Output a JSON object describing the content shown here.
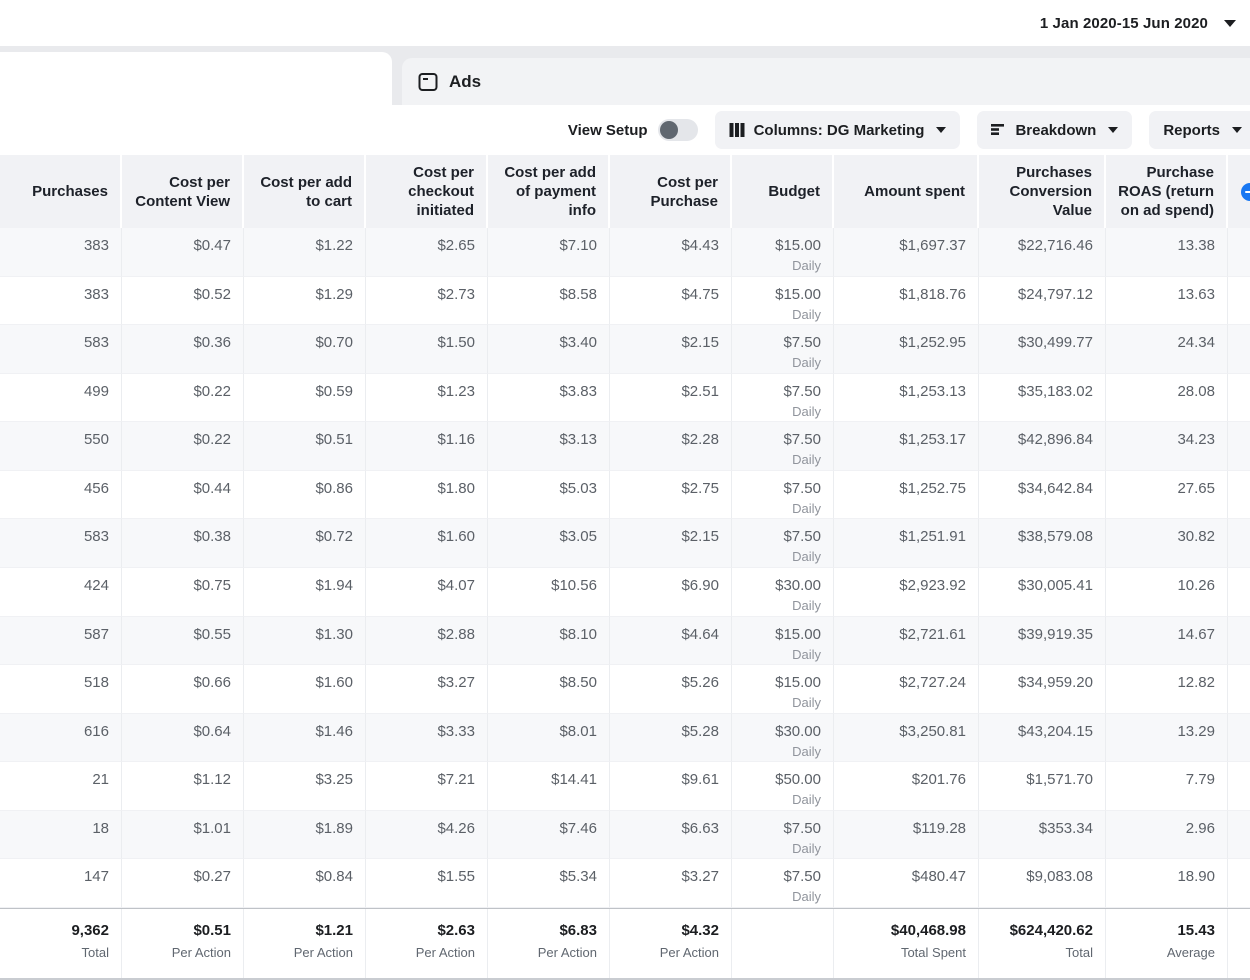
{
  "topbar": {
    "date_range": "1 Jan 2020-15 Jun 2020"
  },
  "tabs": {
    "ads_label": "Ads"
  },
  "toolbar": {
    "view_setup_label": "View Setup",
    "view_setup_state": "off",
    "columns_label": "Columns: DG Marketing",
    "breakdown_label": "Breakdown",
    "reports_label": "Reports"
  },
  "colors": {
    "accent_blue": "#1877f2"
  },
  "table": {
    "column_ids": [
      "purchases",
      "cost-per-content-view",
      "cost-per-add-to-cart",
      "cost-per-checkout-initiated",
      "cost-per-add-of-payment-info",
      "cost-per-purchase",
      "budget",
      "amount-spent",
      "purchases-conversion-value",
      "purchase-roas"
    ],
    "columns": [
      "Purchases",
      "Cost per Content View",
      "Cost per add to cart",
      "Cost per checkout initiated",
      "Cost per add of payment info",
      "Cost per Purchase",
      "Budget",
      "Amount spent",
      "Purchases Conversion Value",
      "Purchase ROAS (return on ad spend)"
    ],
    "rows": [
      [
        "383",
        "$0.47",
        "$1.22",
        "$2.65",
        "$7.10",
        "$4.43",
        "$15.00",
        "Daily",
        "$1,697.37",
        "$22,716.46",
        "13.38"
      ],
      [
        "383",
        "$0.52",
        "$1.29",
        "$2.73",
        "$8.58",
        "$4.75",
        "$15.00",
        "Daily",
        "$1,818.76",
        "$24,797.12",
        "13.63"
      ],
      [
        "583",
        "$0.36",
        "$0.70",
        "$1.50",
        "$3.40",
        "$2.15",
        "$7.50",
        "Daily",
        "$1,252.95",
        "$30,499.77",
        "24.34"
      ],
      [
        "499",
        "$0.22",
        "$0.59",
        "$1.23",
        "$3.83",
        "$2.51",
        "$7.50",
        "Daily",
        "$1,253.13",
        "$35,183.02",
        "28.08"
      ],
      [
        "550",
        "$0.22",
        "$0.51",
        "$1.16",
        "$3.13",
        "$2.28",
        "$7.50",
        "Daily",
        "$1,253.17",
        "$42,896.84",
        "34.23"
      ],
      [
        "456",
        "$0.44",
        "$0.86",
        "$1.80",
        "$5.03",
        "$2.75",
        "$7.50",
        "Daily",
        "$1,252.75",
        "$34,642.84",
        "27.65"
      ],
      [
        "583",
        "$0.38",
        "$0.72",
        "$1.60",
        "$3.05",
        "$2.15",
        "$7.50",
        "Daily",
        "$1,251.91",
        "$38,579.08",
        "30.82"
      ],
      [
        "424",
        "$0.75",
        "$1.94",
        "$4.07",
        "$10.56",
        "$6.90",
        "$30.00",
        "Daily",
        "$2,923.92",
        "$30,005.41",
        "10.26"
      ],
      [
        "587",
        "$0.55",
        "$1.30",
        "$2.88",
        "$8.10",
        "$4.64",
        "$15.00",
        "Daily",
        "$2,721.61",
        "$39,919.35",
        "14.67"
      ],
      [
        "518",
        "$0.66",
        "$1.60",
        "$3.27",
        "$8.50",
        "$5.26",
        "$15.00",
        "Daily",
        "$2,727.24",
        "$34,959.20",
        "12.82"
      ],
      [
        "616",
        "$0.64",
        "$1.46",
        "$3.33",
        "$8.01",
        "$5.28",
        "$30.00",
        "Daily",
        "$3,250.81",
        "$43,204.15",
        "13.29"
      ],
      [
        "21",
        "$1.12",
        "$3.25",
        "$7.21",
        "$14.41",
        "$9.61",
        "$50.00",
        "Daily",
        "$201.76",
        "$1,571.70",
        "7.79"
      ],
      [
        "18",
        "$1.01",
        "$1.89",
        "$4.26",
        "$7.46",
        "$6.63",
        "$7.50",
        "Daily",
        "$119.28",
        "$353.34",
        "2.96"
      ],
      [
        "147",
        "$0.27",
        "$0.84",
        "$1.55",
        "$5.34",
        "$3.27",
        "$7.50",
        "Daily",
        "$480.47",
        "$9,083.08",
        "18.90"
      ]
    ],
    "totals": {
      "values": [
        "9,362",
        "$0.51",
        "$1.21",
        "$2.63",
        "$6.83",
        "$4.32",
        "",
        "$40,468.98",
        "$624,420.62",
        "15.43"
      ],
      "labels": [
        "Total",
        "Per Action",
        "Per Action",
        "Per Action",
        "Per Action",
        "Per Action",
        "",
        "Total Spent",
        "Total",
        "Average"
      ]
    }
  }
}
